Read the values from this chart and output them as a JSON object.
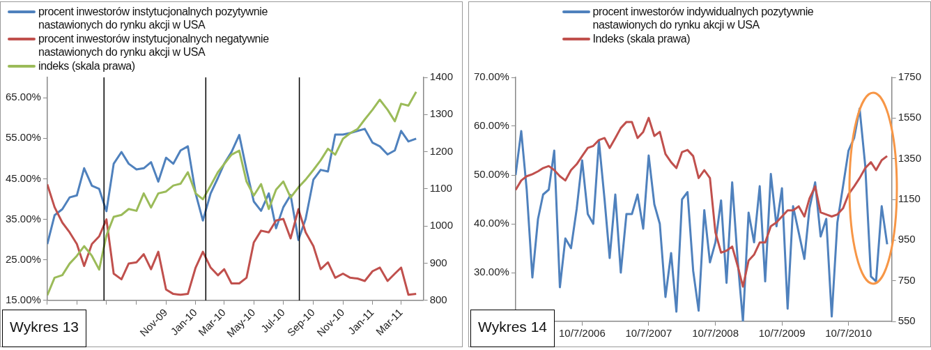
{
  "chart_data": [
    {
      "type": "line",
      "legend": "top left",
      "grid": false,
      "x": [
        "2009-03-01",
        "2009-03-16",
        "2009-04-01",
        "2009-04-16",
        "2009-05-01",
        "2009-05-16",
        "2009-06-01",
        "2009-06-16",
        "2009-07-01",
        "2009-07-16",
        "2009-08-01",
        "2009-08-16",
        "2009-09-01",
        "2009-09-16",
        "2009-10-01",
        "2009-10-16",
        "2009-11-01",
        "2009-11-16",
        "2009-12-01",
        "2009-12-16",
        "2010-01-01",
        "2010-01-16",
        "2010-02-01",
        "2010-02-16",
        "2010-03-01",
        "2010-03-16",
        "2010-04-01",
        "2010-04-16",
        "2010-05-01",
        "2010-05-16",
        "2010-06-01",
        "2010-06-16",
        "2010-07-01",
        "2010-07-16",
        "2010-08-01",
        "2010-08-16",
        "2010-09-01",
        "2010-09-16",
        "2010-10-01",
        "2010-10-16",
        "2010-11-01",
        "2010-11-16",
        "2010-12-01",
        "2010-12-16",
        "2011-01-01",
        "2011-01-16",
        "2011-02-01",
        "2011-02-16",
        "2011-03-01",
        "2011-03-16",
        "2011-04-01"
      ],
      "series": [
        {
          "name": "procent inwestorów instytucjonalnych pozytywnie nastawionych do rynku akcji w USA",
          "color": "#4f81bd",
          "values": [
            28.9,
            36,
            37.5,
            40.4,
            40.9,
            47.6,
            43.3,
            42.5,
            37,
            48.7,
            51.6,
            48.7,
            47.3,
            47.6,
            49.1,
            44.3,
            50.2,
            48.7,
            52,
            53,
            41.4,
            34.7,
            41.4,
            45.2,
            48.7,
            51.6,
            55.8,
            47.2,
            39.4,
            37.1,
            41.4,
            32.8,
            38,
            41,
            29.9,
            35.1,
            44.8,
            47.2,
            46.8,
            55.9,
            55.9,
            56.3,
            56.8,
            57.3,
            53.9,
            53,
            51,
            52,
            56.8,
            54.2,
            54.9
          ]
        },
        {
          "name": "procent inwestorów instytucjonalnych negatywnie nastawionych do rynku akcji w USA",
          "color": "#c0504d",
          "values": [
            43.6,
            38,
            34.2,
            31.8,
            28.9,
            23.5,
            28.9,
            30.8,
            35,
            21.6,
            20.2,
            24.1,
            24.4,
            26.4,
            22.7,
            27,
            17.7,
            16.6,
            16.4,
            16.6,
            23.1,
            27,
            23.1,
            21.2,
            22.7,
            19.2,
            19.2,
            20.6,
            29.3,
            32.2,
            31.8,
            34.7,
            35.1,
            30.3,
            37.5,
            31.8,
            28.4,
            22.7,
            24.4,
            20.6,
            21.6,
            20.6,
            20.4,
            19.8,
            22.2,
            23.1,
            19.8,
            21.6,
            23.1,
            16.4,
            16.6
          ]
        },
        {
          "name": "indeks (skala prawa)",
          "color": "#9bbb59",
          "axis": "y2",
          "values": [
            814,
            861,
            868,
            899,
            920,
            946,
            920,
            883,
            975,
            1025,
            1030,
            1046,
            1041,
            1088,
            1050,
            1088,
            1093,
            1109,
            1114,
            1145,
            1088,
            1072,
            1109,
            1145,
            1167,
            1192,
            1203,
            1120,
            1082,
            1113,
            1046,
            1098,
            1120,
            1077,
            1104,
            1125,
            1151,
            1177,
            1208,
            1192,
            1235,
            1250,
            1261,
            1287,
            1313,
            1340,
            1313,
            1282,
            1329,
            1324,
            1361
          ]
        }
      ],
      "xlim": [
        "2009-03-01",
        "2011-04-16"
      ],
      "xticks": [
        {
          "value": "2009-03-01",
          "label": null
        },
        {
          "value": "2009-05-01",
          "label": null
        },
        {
          "value": "2009-07-01",
          "label": null
        },
        {
          "value": "2009-09-01",
          "label": null
        },
        {
          "value": "2009-11-01",
          "label": "Nov-09"
        },
        {
          "value": "2010-01-01",
          "label": "Jan-10"
        },
        {
          "value": "2010-03-01",
          "label": "Mar-10"
        },
        {
          "value": "2010-05-01",
          "label": "May-10"
        },
        {
          "value": "2010-07-01",
          "label": "Jul-10"
        },
        {
          "value": "2010-09-01",
          "label": "Sep-10"
        },
        {
          "value": "2010-11-01",
          "label": "Nov-10"
        },
        {
          "value": "2011-01-01",
          "label": "Jan-11"
        },
        {
          "value": "2011-03-01",
          "label": "Mar-11"
        }
      ],
      "ylim": [
        15,
        70
      ],
      "yticks": [
        {
          "value": 15,
          "label": "15.00%"
        },
        {
          "value": 25,
          "label": "25.00%"
        },
        {
          "value": 35,
          "label": "35.00%"
        },
        {
          "value": 45,
          "label": "45.00%"
        },
        {
          "value": 55,
          "label": "55.00%"
        },
        {
          "value": 65,
          "label": "65.00%"
        }
      ],
      "y2lim": [
        800,
        1400
      ],
      "y2ticks": [
        800,
        900,
        1000,
        1100,
        1200,
        1300,
        1400
      ],
      "ref_lines": [
        {
          "axis": "x",
          "value": "2009-06-26",
          "color": "#000000"
        },
        {
          "axis": "x",
          "value": "2010-01-22",
          "color": "#000000"
        },
        {
          "axis": "x",
          "value": "2010-08-03",
          "color": "#000000"
        }
      ],
      "annotations": [
        "Wykres 13"
      ]
    },
    {
      "type": "line",
      "legend": "top",
      "grid": false,
      "x": [
        "2005-10-07",
        "2005-11-07",
        "2005-12-07",
        "2006-01-07",
        "2006-02-07",
        "2006-03-07",
        "2006-04-07",
        "2006-05-07",
        "2006-06-07",
        "2006-07-07",
        "2006-08-07",
        "2006-09-07",
        "2006-10-07",
        "2006-11-07",
        "2006-12-07",
        "2007-01-07",
        "2007-02-07",
        "2007-03-07",
        "2007-04-07",
        "2007-05-07",
        "2007-06-07",
        "2007-07-07",
        "2007-08-07",
        "2007-09-07",
        "2007-10-07",
        "2007-11-07",
        "2007-12-07",
        "2008-01-07",
        "2008-02-07",
        "2008-03-07",
        "2008-04-07",
        "2008-05-07",
        "2008-06-07",
        "2008-07-07",
        "2008-08-07",
        "2008-09-07",
        "2008-10-07",
        "2008-11-07",
        "2008-12-07",
        "2009-01-07",
        "2009-02-07",
        "2009-03-07",
        "2009-04-07",
        "2009-05-07",
        "2009-06-07",
        "2009-07-07",
        "2009-08-07",
        "2009-09-07",
        "2009-10-07",
        "2009-11-07",
        "2009-12-07",
        "2010-01-07",
        "2010-02-07",
        "2010-03-07",
        "2010-04-07",
        "2010-05-07",
        "2010-06-07",
        "2010-07-07",
        "2010-08-07",
        "2010-09-07",
        "2010-10-07",
        "2010-11-07",
        "2010-12-07",
        "2011-01-07",
        "2011-02-07",
        "2011-03-07",
        "2011-04-07",
        "2011-05-07"
      ],
      "series": [
        {
          "name": "procent inwestorów indywidualnych pozytywnie nastawionych do rynku akcji w USA",
          "color": "#4f81bd",
          "values": [
            50,
            59,
            47,
            29,
            41,
            46,
            47,
            55,
            27,
            37,
            35,
            43,
            53,
            42,
            40,
            57,
            45,
            33,
            46,
            30,
            42,
            42,
            46,
            39,
            54,
            44,
            40,
            25,
            34,
            22,
            45,
            46.5,
            30.4,
            22.2,
            42.8,
            32.1,
            36.2,
            44.8,
            27.9,
            48.5,
            32.1,
            20,
            42.3,
            36.2,
            47.7,
            28.2,
            50.2,
            39.5,
            47.3,
            22.6,
            43.6,
            38.2,
            32.8,
            43.2,
            48.5,
            37.4,
            41,
            21,
            40.3,
            47.7,
            55,
            57.6,
            63.6,
            51.8,
            29.2,
            28.2,
            43.6,
            35.8
          ]
        },
        {
          "name": "Indeks (skala prawa)",
          "color": "#c0504d",
          "axis": "y2",
          "values": [
            1196,
            1243,
            1264,
            1274,
            1288,
            1304,
            1314,
            1294,
            1264,
            1243,
            1294,
            1323,
            1363,
            1403,
            1413,
            1442,
            1452,
            1403,
            1452,
            1501,
            1531,
            1531,
            1452,
            1482,
            1551,
            1462,
            1482,
            1373,
            1333,
            1304,
            1383,
            1393,
            1363,
            1255,
            1294,
            1255,
            988,
            888,
            898,
            918,
            820,
            721,
            849,
            878,
            938,
            938,
            1018,
            1037,
            1066,
            1096,
            1096,
            1116,
            1066,
            1155,
            1214,
            1086,
            1076,
            1066,
            1076,
            1106,
            1175,
            1214,
            1255,
            1304,
            1333,
            1294,
            1343,
            1363
          ]
        }
      ],
      "xlim": [
        "2005-10-07",
        "2011-06-01"
      ],
      "xticks": [
        {
          "value": "2005-10-07",
          "label": null
        },
        {
          "value": "2006-10-07",
          "label": "10/7/2006"
        },
        {
          "value": "2007-10-07",
          "label": "10/7/2007"
        },
        {
          "value": "2008-10-07",
          "label": "10/7/2008"
        },
        {
          "value": "2009-10-07",
          "label": "10/7/2009"
        },
        {
          "value": "2010-10-07",
          "label": "10/7/2010"
        }
      ],
      "ylim": [
        20,
        70
      ],
      "yticks": [
        {
          "value": 20,
          "label": null
        },
        {
          "value": 30,
          "label": "30.00%"
        },
        {
          "value": 40,
          "label": "40.00%"
        },
        {
          "value": 50,
          "label": "50.00%"
        },
        {
          "value": 60,
          "label": "60.00%"
        },
        {
          "value": 70,
          "label": "70.00%"
        }
      ],
      "y2lim": [
        550,
        1750
      ],
      "y2ticks": [
        550,
        750,
        950,
        1150,
        1350,
        1550,
        1750
      ],
      "annotations": [
        "Wykres 14"
      ]
    }
  ]
}
